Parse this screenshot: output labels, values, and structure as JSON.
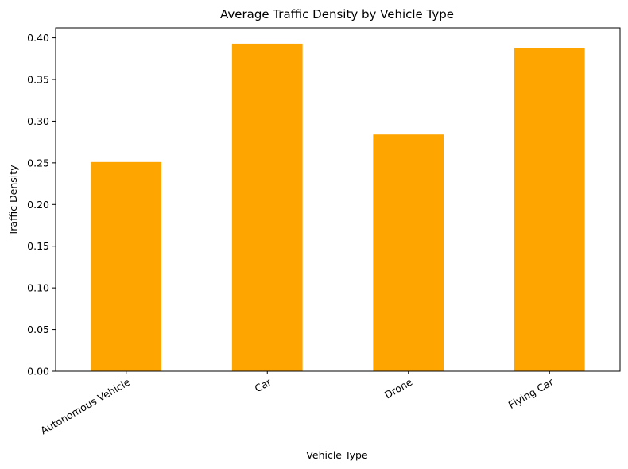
{
  "chart_data": {
    "type": "bar",
    "title": "Average Traffic Density by Vehicle Type",
    "xlabel": "Vehicle Type",
    "ylabel": "Traffic Density",
    "categories": [
      "Autonomous Vehicle",
      "Car",
      "Drone",
      "Flying Car"
    ],
    "values": [
      0.251,
      0.393,
      0.284,
      0.388
    ],
    "ylim": [
      0,
      0.412
    ],
    "yticks": [
      0.0,
      0.05,
      0.1,
      0.15,
      0.2,
      0.25,
      0.3,
      0.35,
      0.4
    ],
    "ytick_labels": [
      "0.00",
      "0.05",
      "0.10",
      "0.15",
      "0.20",
      "0.25",
      "0.30",
      "0.35",
      "0.40"
    ],
    "bar_color": "#FFA500",
    "grid": false,
    "xtick_rotation_deg": 30
  }
}
